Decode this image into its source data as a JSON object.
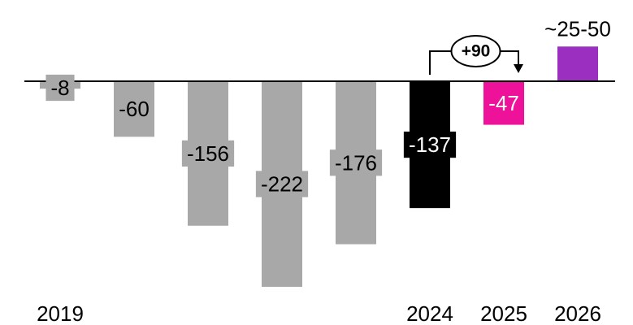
{
  "chart_data": {
    "type": "bar",
    "categories": [
      "2019",
      "",
      "",
      "",
      "",
      "2024",
      "2025",
      "2026"
    ],
    "values": [
      -8,
      -60,
      -156,
      -222,
      -176,
      -137,
      -47,
      37.5
    ],
    "labels": [
      "-8",
      "-60",
      "-156",
      "-222",
      "-176",
      "-137",
      "-47",
      "~25-50"
    ],
    "bar_colors": [
      "#a8a8a8",
      "#a8a8a8",
      "#a8a8a8",
      "#a8a8a8",
      "#a8a8a8",
      "#000000",
      "#ee1199",
      "#9a2fc0"
    ],
    "label_colors": [
      "#000000",
      "#000000",
      "#000000",
      "#000000",
      "#000000",
      "#ffffff",
      "#ffffff",
      "#000000"
    ],
    "annotation": {
      "text": "+90",
      "from": "2024",
      "to": "2025"
    },
    "title": "",
    "xlabel": "",
    "ylabel": "",
    "ylim": [
      -222,
      37.5
    ],
    "grid": false,
    "legend": "none"
  }
}
